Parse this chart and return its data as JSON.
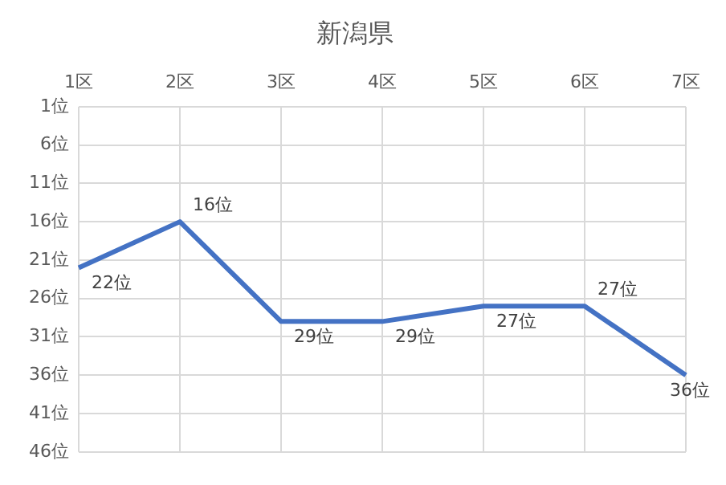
{
  "chart_data": {
    "type": "line",
    "title": "新潟県",
    "categories": [
      "1区",
      "2区",
      "3区",
      "4区",
      "5区",
      "6区",
      "7区"
    ],
    "series": [
      {
        "color": "#4472c4",
        "values": [
          22,
          16,
          29,
          29,
          27,
          27,
          36
        ],
        "value_labels": [
          "22位",
          "16位",
          "29位",
          "29位",
          "27位",
          "27位",
          "36位"
        ]
      }
    ],
    "ylim": [
      46,
      1
    ],
    "yticks": [
      {
        "value": 1,
        "label": "1位"
      },
      {
        "value": 6,
        "label": "6位"
      },
      {
        "value": 11,
        "label": "11位"
      },
      {
        "value": 16,
        "label": "16位"
      },
      {
        "value": 21,
        "label": "21位"
      },
      {
        "value": 26,
        "label": "26位"
      },
      {
        "value": 31,
        "label": "31位"
      },
      {
        "value": 36,
        "label": "36位"
      },
      {
        "value": 41,
        "label": "41位"
      },
      {
        "value": 46,
        "label": "46位"
      }
    ],
    "grid": true,
    "legend": false,
    "marker": "none",
    "line_style": "solid"
  }
}
